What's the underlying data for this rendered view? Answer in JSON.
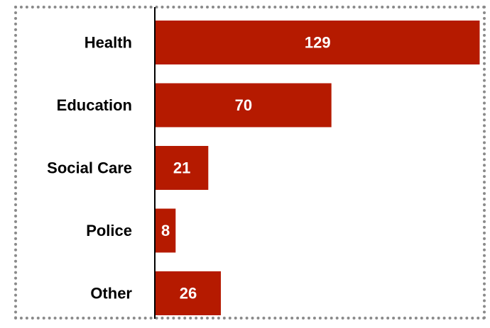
{
  "chart_data": {
    "type": "bar",
    "orientation": "horizontal",
    "categories": [
      "Health",
      "Education",
      "Social Care",
      "Police",
      "Other"
    ],
    "values": [
      129,
      70,
      21,
      8,
      26
    ],
    "data_labels": [
      "129",
      "70",
      "21",
      "8",
      "26"
    ],
    "title": "",
    "xlabel": "",
    "ylabel": "",
    "xlim": [
      0,
      130
    ],
    "grid": false,
    "legend": "none",
    "colors": {
      "bar": "#b51a00",
      "axis": "#000000",
      "label": "#000000",
      "value_label": "#ffffff",
      "border": "#8a8a8a"
    }
  }
}
